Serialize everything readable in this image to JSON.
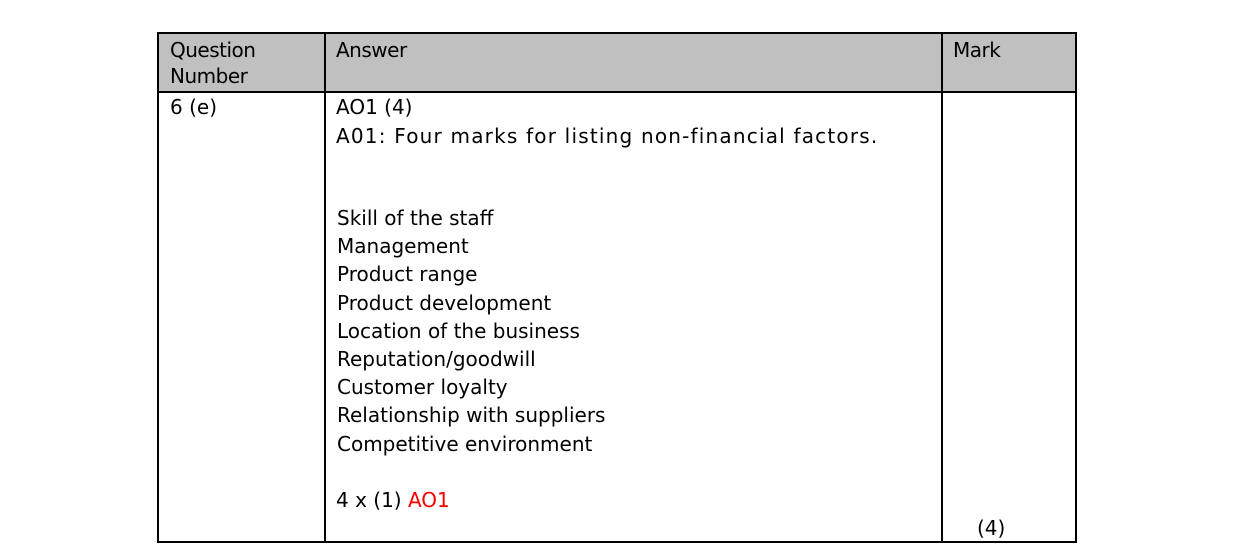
{
  "table": {
    "headers": {
      "question_number": "Question Number",
      "answer": "Answer",
      "mark": "Mark"
    },
    "row": {
      "question_number": "6 (e)",
      "answer_heading": "AO1 (4)",
      "answer_description": "A01: Four marks for listing non-financial factors.",
      "factors": [
        "Skill of the staff",
        "Management",
        "Product range",
        "Product development",
        "Location of the business",
        "Reputation/goodwill",
        "Customer loyalty",
        "Relationship with suppliers",
        "Competitive environment"
      ],
      "marking_scheme_prefix": "4 x (1)",
      "marking_scheme_ao": "AO1",
      "mark": "(4)"
    },
    "colors": {
      "header_bg": "#c0c0c0",
      "ao_highlight": "#ff0000"
    }
  }
}
